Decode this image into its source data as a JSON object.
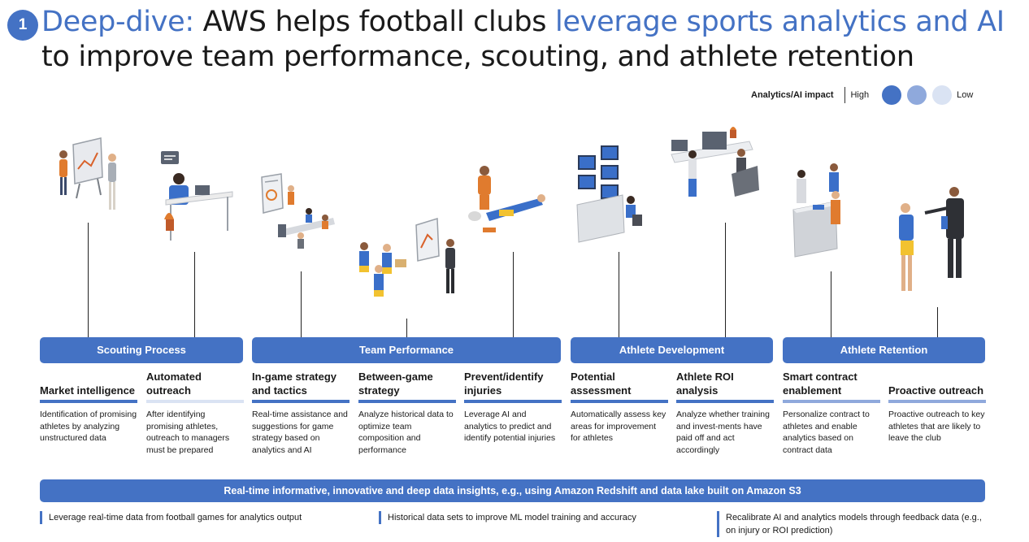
{
  "slide": {
    "number": "1",
    "title_part1": "Deep-dive:",
    "title_part2": " AWS helps football clubs ",
    "title_part3": "leverage sports analytics and AI",
    "title_part4": " to improve team performance, scouting, and athlete retention"
  },
  "legend": {
    "title": "Analytics/AI impact",
    "high": "High",
    "low": "Low",
    "colors": [
      "#4472c4",
      "#8fa9dc",
      "#dae3f3"
    ]
  },
  "categories": [
    {
      "label": "Scouting Process"
    },
    {
      "label": "Team Performance"
    },
    {
      "label": "Athlete Development"
    },
    {
      "label": "Athlete Retention"
    }
  ],
  "columns": [
    {
      "title": "Market intelligence",
      "description": "Identification of promising athletes by analyzing unstructured data",
      "impact": "high"
    },
    {
      "title": "Automated outreach",
      "description": "After identifying promising athletes, outreach to managers must be prepared",
      "impact": "low"
    },
    {
      "title": "In-game strategy and tactics",
      "description": "Real-time assistance and suggestions for game strategy based on analytics and AI",
      "impact": "high"
    },
    {
      "title": "Between-game strategy",
      "description": "Analyze historical data to optimize team composition and performance",
      "impact": "high"
    },
    {
      "title": "Prevent/identify injuries",
      "description": "Leverage AI and analytics to predict and identify potential injuries",
      "impact": "high"
    },
    {
      "title": "Potential assessment",
      "description": "Automatically assess key areas for improvement for athletes",
      "impact": "high"
    },
    {
      "title": "Athlete ROI analysis",
      "description": "Analyze whether training and invest-ments have paid off and act accordingly",
      "impact": "high"
    },
    {
      "title": "Smart contract enablement",
      "description": "Personalize contract to athletes and enable analytics based on contract data",
      "impact": "medium"
    },
    {
      "title": "Proactive outreach",
      "description": "Proactive outreach to key athletes that are likely to leave the club",
      "impact": "medium"
    }
  ],
  "data_bar": "Real-time informative, innovative and deep data insights, e.g., using Amazon Redshift and data lake built on Amazon S3",
  "bottom_items": [
    "Leverage real-time data from football games for analytics output",
    "Historical data sets to improve ML model training and accuracy",
    "Recalibrate AI and analytics models through feedback data (e.g., on injury or ROI prediction)"
  ]
}
